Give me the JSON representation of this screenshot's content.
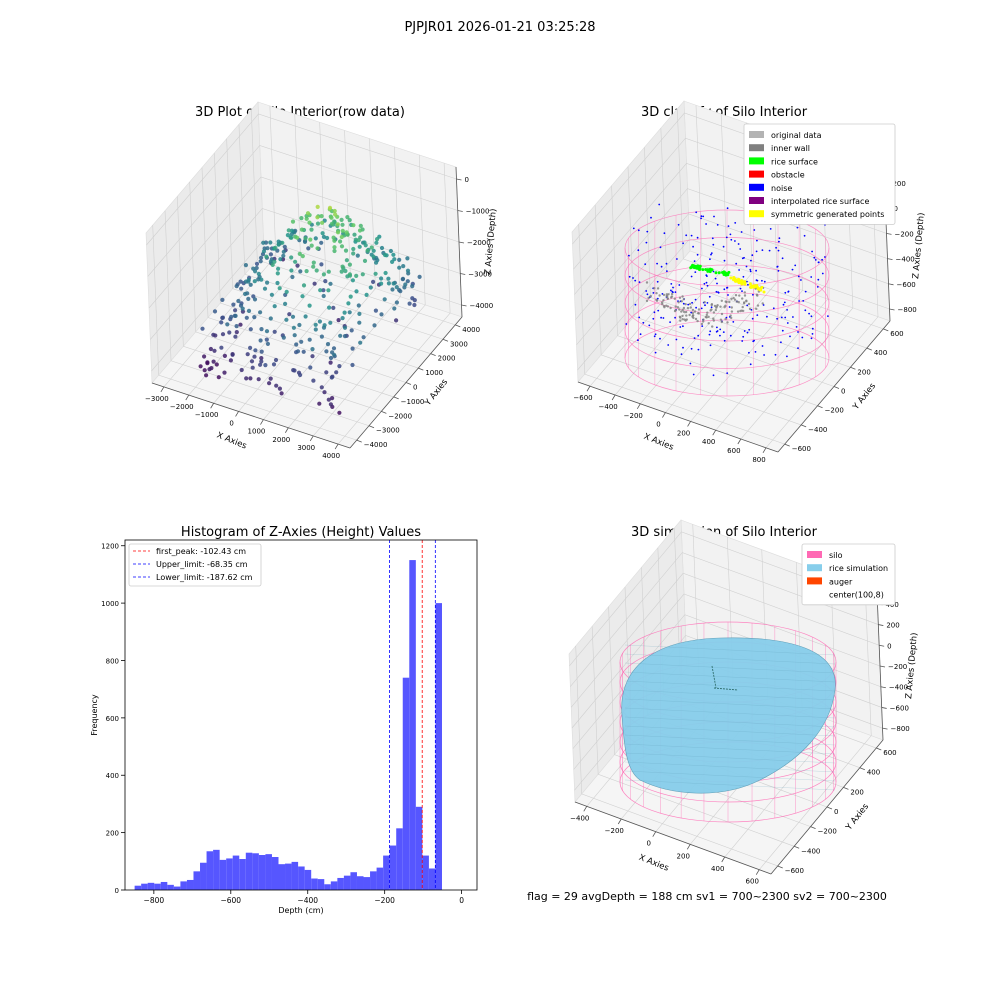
{
  "figure": {
    "suptitle": "PJPJR01 2026-01-21 03:25:28",
    "footer": "flag = 29  avgDepth = 188 cm  sv1 = 700~2300  sv2 = 700~2300"
  },
  "colors": {
    "histogram_bar": "#4d4dff",
    "first_peak_line": "#ff0000",
    "limit_lines": "#0000ff",
    "silo_wire": "#ff69b4",
    "rice_surface": "#87ceeb",
    "noise": "#0000ff",
    "inner_wall": "#808080",
    "original": "#b3b3b3",
    "rice_points": "#00ff00",
    "symmetric_points": "#ffff00"
  },
  "chart_data": [
    {
      "type": "scatter",
      "subtype": "3d-scatter",
      "title": "3D Plot of Silo Interior(row data)",
      "xlabel": "X Axies",
      "ylabel": "Y Axies",
      "zlabel": "Z Axies (Depth)",
      "x_ticks": [
        "−3000",
        "−2000",
        "−1000",
        "0",
        "1000",
        "2000",
        "3000",
        "4000"
      ],
      "y_ticks": [
        "−4000",
        "−3000",
        "−2000",
        "−1000",
        "0",
        "1000",
        "2000",
        "3000",
        "4000"
      ],
      "z_ticks": [
        "0",
        "−1000",
        "−2000",
        "−3000",
        "−4000"
      ],
      "colormap": "viridis"
    },
    {
      "type": "scatter",
      "subtype": "3d-scatter",
      "title": "3D classify of Silo Interior",
      "xlabel": "X Axies",
      "ylabel": "Y Axies",
      "zlabel": "Z Axies (Depth)",
      "x_ticks": [
        "−600",
        "−400",
        "−200",
        "0",
        "200",
        "400",
        "600",
        "800"
      ],
      "y_ticks": [
        "−600",
        "−400",
        "−200",
        "0",
        "200",
        "400",
        "600"
      ],
      "z_ticks": [
        "200",
        "0",
        "−200",
        "−400",
        "−600",
        "−800"
      ],
      "legend": [
        {
          "label": "original data",
          "color": "#b3b3b3"
        },
        {
          "label": "inner wall",
          "color": "#808080"
        },
        {
          "label": "rice surface",
          "color": "#00ff00"
        },
        {
          "label": "obstacle",
          "color": "#ff0000"
        },
        {
          "label": "noise",
          "color": "#0000ff"
        },
        {
          "label": "interpolated rice surface",
          "color": "#800080"
        },
        {
          "label": "symmetric generated points",
          "color": "#ffff00"
        }
      ],
      "legend_position": "top-right"
    },
    {
      "type": "bar",
      "subtype": "histogram",
      "title": "Histogram of Z-Axies (Height) Values",
      "xlabel": "Depth (cm)",
      "ylabel": "Frequency",
      "xlim": [
        -875,
        40
      ],
      "ylim": [
        0,
        1220
      ],
      "x_ticks": [
        -800,
        -600,
        -400,
        -200,
        0
      ],
      "x_tick_labels": [
        "−800",
        "−600",
        "−400",
        "−200",
        "0"
      ],
      "y_ticks": [
        0,
        200,
        400,
        600,
        800,
        1000,
        1200
      ],
      "bin_start": -850,
      "bin_width": 17,
      "values": [
        15,
        22,
        25,
        22,
        28,
        18,
        12,
        30,
        35,
        65,
        95,
        135,
        140,
        105,
        110,
        120,
        108,
        130,
        128,
        122,
        125,
        115,
        90,
        92,
        98,
        82,
        70,
        40,
        38,
        20,
        30,
        42,
        50,
        62,
        48,
        45,
        65,
        78,
        120,
        155,
        215,
        740,
        1150,
        290,
        120,
        75,
        1000
      ],
      "vlines": [
        {
          "label": "first_peak: -102.43 cm",
          "x": -102.43,
          "color": "#ff0000"
        },
        {
          "label": "Upper_limit: -68.35 cm",
          "x": -68.35,
          "color": "#0000ff"
        },
        {
          "label": "Lower_limit: -187.62 cm",
          "x": -187.62,
          "color": "#0000ff"
        }
      ],
      "legend_position": "top-left"
    },
    {
      "type": "area",
      "subtype": "3d-surface",
      "title": "3D simulation of Silo Interior",
      "xlabel": "X Axies",
      "ylabel": "Y Axies",
      "zlabel": "Z Axies (Depth)",
      "x_ticks": [
        "−400",
        "−200",
        "0",
        "200",
        "400",
        "600"
      ],
      "y_ticks": [
        "−600",
        "−400",
        "−200",
        "0",
        "200",
        "400",
        "600"
      ],
      "z_ticks": [
        "400",
        "200",
        "0",
        "−200",
        "−400",
        "−600",
        "−800"
      ],
      "legend": [
        {
          "label": "silo",
          "color": "#ff69b4"
        },
        {
          "label": "rice simulation",
          "color": "#87ceeb"
        },
        {
          "label": "auger",
          "color": "#ff4500"
        },
        {
          "label": "center(100,8)",
          "color": ""
        }
      ],
      "legend_position": "top-right"
    }
  ]
}
